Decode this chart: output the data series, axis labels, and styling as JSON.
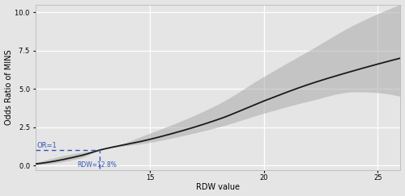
{
  "title": "",
  "xlabel": "RDW value",
  "ylabel": "Odds Ratio of MINS",
  "x_min": 10,
  "x_max": 26,
  "y_min": -0.3,
  "y_max": 10.5,
  "yticks": [
    0.0,
    2.5,
    5.0,
    7.5,
    10.0
  ],
  "xticks": [
    15,
    20,
    25
  ],
  "bg_color": "#e5e5e5",
  "plot_bg_color": "#e5e5e5",
  "grid_color": "#ffffff",
  "line_color": "#1a1a1a",
  "ci_color": "#aaaaaa",
  "ref_line_color": "#3355bb",
  "ref_x": 12.8,
  "ref_y": 1.0,
  "annotation_or": "OR=1",
  "annotation_rdw": "RDW=12.8%"
}
